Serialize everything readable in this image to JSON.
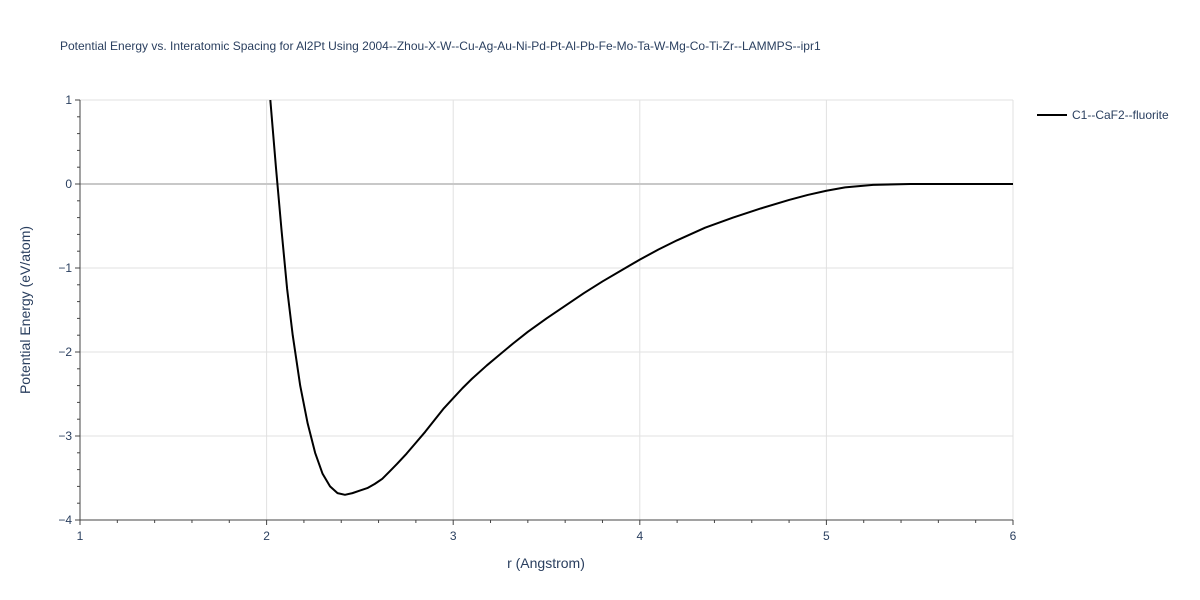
{
  "chart_data": {
    "type": "line",
    "title": "Potential Energy vs. Interatomic Spacing for Al2Pt Using 2004--Zhou-X-W--Cu-Ag-Au-Ni-Pd-Pt-Al-Pb-Fe-Mo-Ta-W-Mg-Co-Ti-Zr--LAMMPS--ipr1",
    "xlabel": "r (Angstrom)",
    "ylabel": "Potential Energy (eV/atom)",
    "xlim": [
      1,
      6
    ],
    "ylim": [
      -4,
      1
    ],
    "x_ticks": [
      1,
      2,
      3,
      4,
      5,
      6
    ],
    "x_tick_labels": [
      "1",
      "2",
      "3",
      "4",
      "5",
      "6"
    ],
    "y_ticks": [
      1,
      0,
      -1,
      -2,
      -3,
      -4
    ],
    "y_tick_labels": [
      "1",
      "0",
      "−1",
      "−2",
      "−3",
      "−4"
    ],
    "grid": true,
    "legend_position": "top-right",
    "series": [
      {
        "name": "C1--CaF2--fluorite",
        "color": "#000000",
        "x": [
          2.02,
          2.05,
          2.08,
          2.11,
          2.14,
          2.18,
          2.22,
          2.26,
          2.3,
          2.34,
          2.38,
          2.42,
          2.46,
          2.5,
          2.54,
          2.58,
          2.62,
          2.66,
          2.7,
          2.75,
          2.8,
          2.85,
          2.9,
          2.95,
          3.0,
          3.05,
          3.1,
          3.18,
          3.25,
          3.32,
          3.4,
          3.5,
          3.6,
          3.7,
          3.8,
          3.9,
          4.0,
          4.1,
          4.2,
          4.35,
          4.5,
          4.65,
          4.8,
          4.9,
          5.0,
          5.1,
          5.25,
          5.45,
          5.7,
          6.0
        ],
        "y": [
          1.0,
          0.2,
          -0.55,
          -1.25,
          -1.8,
          -2.4,
          -2.85,
          -3.2,
          -3.45,
          -3.6,
          -3.68,
          -3.7,
          -3.68,
          -3.65,
          -3.62,
          -3.57,
          -3.51,
          -3.42,
          -3.33,
          -3.21,
          -3.08,
          -2.95,
          -2.81,
          -2.67,
          -2.55,
          -2.43,
          -2.32,
          -2.16,
          -2.03,
          -1.9,
          -1.76,
          -1.6,
          -1.45,
          -1.3,
          -1.16,
          -1.03,
          -0.9,
          -0.78,
          -0.67,
          -0.52,
          -0.4,
          -0.29,
          -0.19,
          -0.13,
          -0.08,
          -0.04,
          -0.01,
          0.0,
          0.0,
          0.0
        ]
      }
    ]
  }
}
